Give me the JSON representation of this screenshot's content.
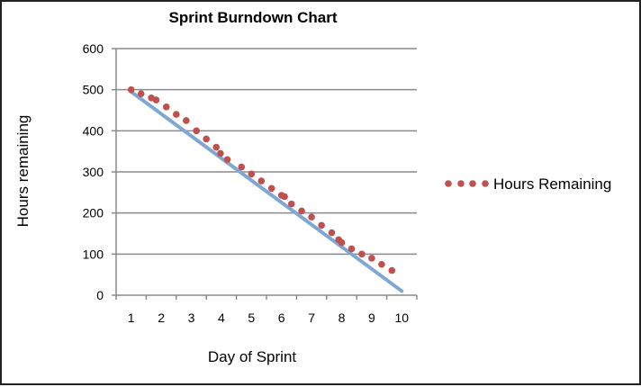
{
  "chart_data": {
    "type": "line",
    "title": "Sprint Burndown Chart",
    "xlabel": "Day of Sprint",
    "ylabel": "Hours remaining",
    "xlim": [
      0.5,
      10.5
    ],
    "ylim": [
      0,
      600
    ],
    "x_ticks": [
      1,
      2,
      3,
      4,
      5,
      6,
      7,
      8,
      9,
      10
    ],
    "y_ticks": [
      0,
      100,
      200,
      300,
      400,
      500,
      600
    ],
    "grid": "horizontal",
    "legend_position": "right",
    "ideal_line": {
      "x": [
        1,
        10
      ],
      "y": [
        495,
        10
      ],
      "color": "#7fa7d4"
    },
    "series": [
      {
        "name": "Hours Remaining",
        "style": "dotted",
        "color": "#c0504d",
        "x": [
          1,
          1.33,
          1.67,
          1.83,
          2.17,
          2.5,
          2.83,
          3.17,
          3.5,
          3.83,
          3.97,
          4.2,
          4.67,
          5.0,
          5.33,
          5.67,
          6.0,
          6.1,
          6.33,
          6.67,
          7.0,
          7.33,
          7.67,
          7.9,
          8.0,
          8.33,
          8.67,
          9.0,
          9.33,
          9.67
        ],
        "y": [
          500,
          490,
          480,
          475,
          458,
          440,
          425,
          400,
          380,
          360,
          345,
          330,
          312,
          295,
          278,
          260,
          243,
          240,
          222,
          205,
          190,
          170,
          152,
          135,
          128,
          113,
          100,
          90,
          75,
          60
        ]
      }
    ]
  }
}
